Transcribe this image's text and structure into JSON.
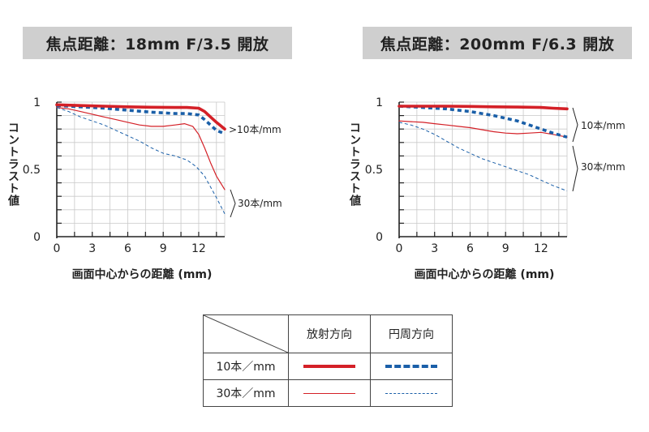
{
  "chart_data": [
    {
      "type": "line",
      "title": "焦点距離：18mm  F/3.5 開放",
      "xlabel": "画面中心からの距離 (mm)",
      "ylabel": "コントラスト値",
      "xlim": [
        0,
        14.2
      ],
      "ylim": [
        0,
        1
      ],
      "xticks": [
        "0",
        "3",
        "6",
        "9",
        "12"
      ],
      "yticks": [
        "0",
        "0.5",
        "1"
      ],
      "grid": true,
      "annotations": [
        ">10本/mm",
        "30本/mm"
      ],
      "series": [
        {
          "name": "10本/mm 放射方向",
          "color": "#d42027",
          "style": "solid-thick",
          "x": [
            0,
            2,
            4,
            6,
            8,
            10,
            11,
            12,
            12.5,
            13,
            13.5,
            14.2
          ],
          "y": [
            0.98,
            0.975,
            0.97,
            0.965,
            0.962,
            0.96,
            0.96,
            0.955,
            0.93,
            0.89,
            0.85,
            0.8
          ]
        },
        {
          "name": "10本/mm 円周方向",
          "color": "#1a5fa8",
          "style": "dashed-thick",
          "x": [
            0,
            2,
            4,
            6,
            8,
            10,
            11,
            12,
            12.5,
            13,
            13.5,
            14.2
          ],
          "y": [
            0.975,
            0.965,
            0.955,
            0.94,
            0.925,
            0.915,
            0.915,
            0.905,
            0.87,
            0.83,
            0.79,
            0.765
          ]
        },
        {
          "name": "30本/mm 放射方向",
          "color": "#d42027",
          "style": "solid-thin",
          "x": [
            0,
            1,
            2,
            3,
            4,
            5,
            6,
            7,
            8,
            9,
            10,
            10.8,
            11.5,
            12,
            12.5,
            13,
            13.5,
            14.2
          ],
          "y": [
            0.96,
            0.95,
            0.93,
            0.91,
            0.89,
            0.87,
            0.85,
            0.83,
            0.82,
            0.82,
            0.83,
            0.84,
            0.82,
            0.76,
            0.66,
            0.55,
            0.45,
            0.35
          ]
        },
        {
          "name": "30本/mm 円周方向",
          "color": "#1a5fa8",
          "style": "dashed-thin",
          "x": [
            0,
            1,
            2,
            3,
            4,
            5,
            6,
            7,
            8,
            9,
            10,
            11,
            11.8,
            12.5,
            13,
            13.5,
            14.2
          ],
          "y": [
            0.96,
            0.93,
            0.89,
            0.86,
            0.83,
            0.79,
            0.75,
            0.71,
            0.66,
            0.62,
            0.6,
            0.57,
            0.52,
            0.45,
            0.37,
            0.29,
            0.17
          ]
        }
      ]
    },
    {
      "type": "line",
      "title": "焦点距離：200mm  F/6.3 開放",
      "xlabel": "画面中心からの距離 (mm)",
      "ylabel": "コントラスト値",
      "xlim": [
        0,
        14.2
      ],
      "ylim": [
        0,
        1
      ],
      "xticks": [
        "0",
        "3",
        "6",
        "9",
        "12"
      ],
      "yticks": [
        "0",
        "0.5",
        "1"
      ],
      "grid": true,
      "annotations": [
        "10本/mm",
        "30本/mm"
      ],
      "series": [
        {
          "name": "10本/mm 放射方向",
          "color": "#d42027",
          "style": "solid-thick",
          "x": [
            0,
            2,
            4,
            6,
            8,
            10,
            12,
            13,
            14.2
          ],
          "y": [
            0.97,
            0.97,
            0.97,
            0.968,
            0.965,
            0.963,
            0.96,
            0.955,
            0.95
          ]
        },
        {
          "name": "10本/mm 円周方向",
          "color": "#1a5fa8",
          "style": "dashed-thick",
          "x": [
            0,
            1,
            2,
            3,
            4,
            5,
            6,
            7,
            8,
            9,
            10,
            11,
            12,
            13,
            14.2
          ],
          "y": [
            0.97,
            0.965,
            0.96,
            0.955,
            0.95,
            0.94,
            0.93,
            0.915,
            0.9,
            0.88,
            0.86,
            0.83,
            0.8,
            0.77,
            0.74
          ]
        },
        {
          "name": "30本/mm 放射方向",
          "color": "#d42027",
          "style": "solid-thin",
          "x": [
            0,
            1,
            2,
            3,
            4,
            5,
            6,
            7,
            8,
            9,
            10,
            11,
            12,
            13,
            14.2
          ],
          "y": [
            0.86,
            0.855,
            0.85,
            0.84,
            0.83,
            0.82,
            0.81,
            0.795,
            0.78,
            0.77,
            0.765,
            0.77,
            0.775,
            0.76,
            0.74
          ]
        },
        {
          "name": "30本/mm 円周方向",
          "color": "#1a5fa8",
          "style": "dashed-thin",
          "x": [
            0,
            1,
            2,
            3,
            4,
            5,
            6,
            7,
            8,
            9,
            10,
            11,
            12,
            13,
            14.2
          ],
          "y": [
            0.85,
            0.83,
            0.8,
            0.76,
            0.71,
            0.66,
            0.62,
            0.58,
            0.55,
            0.52,
            0.49,
            0.46,
            0.42,
            0.38,
            0.34
          ]
        }
      ]
    }
  ],
  "legend": {
    "col_radial": "放射方向",
    "col_tangential": "円周方向",
    "row_10": "10本／mm",
    "row_30": "30本／mm",
    "colors": {
      "red": "#d42027",
      "blue": "#1a5fa8"
    }
  }
}
